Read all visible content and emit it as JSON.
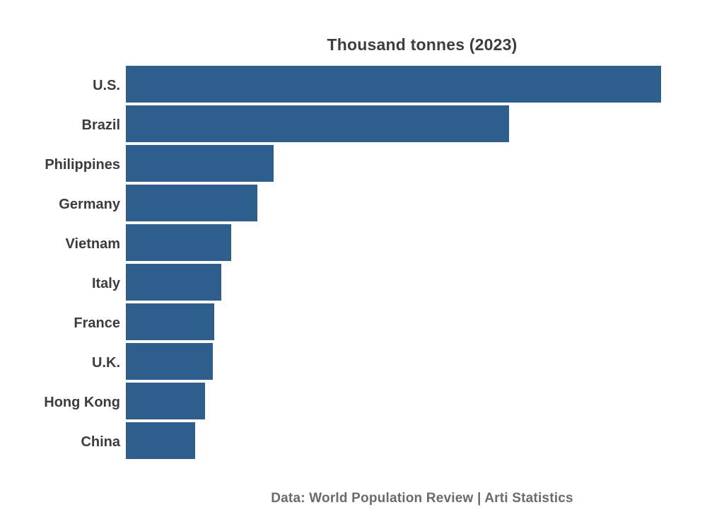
{
  "chart_data": {
    "type": "bar",
    "orientation": "horizontal",
    "title": "Thousand tonnes (2023)",
    "categories": [
      "U.S.",
      "Brazil",
      "Philippines",
      "Germany",
      "Vietnam",
      "Italy",
      "France",
      "U.K.",
      "Hong Kong",
      "China"
    ],
    "values_pct_of_max": [
      100,
      71.6,
      27.6,
      24.6,
      19.7,
      17.8,
      16.5,
      16.2,
      14.8,
      12.9
    ],
    "bar_color": "#2e5f8c",
    "axis_ticks_shown": false,
    "value_labels_shown": false,
    "gridlines_shown": false,
    "legend_shown": false,
    "source_note": "Data: World Population Review | Arti Statistics"
  },
  "colors": {
    "background": "#ffffff",
    "title_text": "#3d3d3d",
    "label_text": "#3c3c3c",
    "footer_text": "#6b6b6b"
  }
}
